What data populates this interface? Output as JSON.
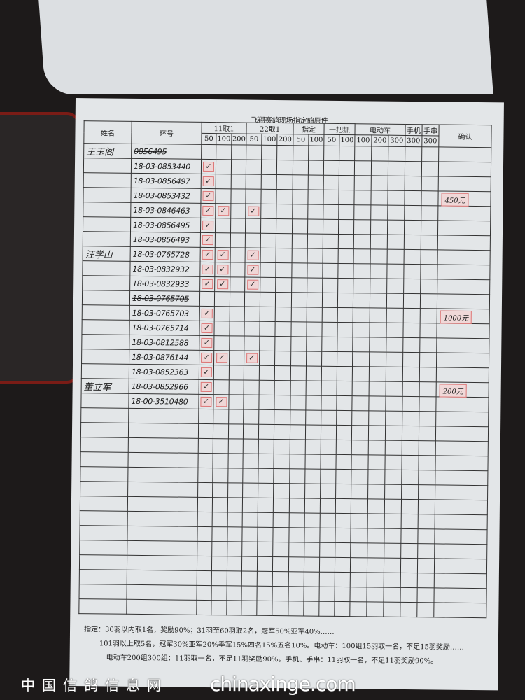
{
  "form": {
    "title": "飞翔赛鸽现场指定鸽原件",
    "headers": {
      "name": "姓名",
      "ring": "环号",
      "groups": [
        {
          "label": "11取1",
          "subs": [
            "50",
            "100",
            "200"
          ]
        },
        {
          "label": "22取1",
          "subs": [
            "50",
            "100",
            "200"
          ]
        },
        {
          "label": "指定",
          "subs": [
            "50",
            "100"
          ]
        },
        {
          "label": "一把抓",
          "subs": [
            "50",
            "100"
          ]
        },
        {
          "label": "电动车",
          "subs": [
            "100",
            "200",
            "300"
          ]
        },
        {
          "label": "手机",
          "subs": [
            "300"
          ]
        },
        {
          "label": "手串",
          "subs": [
            "300"
          ]
        }
      ],
      "confirm": "确认"
    },
    "rows": [
      {
        "name": "王玉阁",
        "ring": "0856495",
        "struck": true,
        "checks": []
      },
      {
        "name": "",
        "ring": "18-03-0853440",
        "checks": [
          0
        ]
      },
      {
        "name": "",
        "ring": "18-03-0856497",
        "checks": [
          0
        ]
      },
      {
        "name": "",
        "ring": "18-03-0853432",
        "checks": [
          0
        ],
        "confirm": "450元"
      },
      {
        "name": "",
        "ring": "18-03-0846463",
        "checks": [
          0,
          1,
          3
        ]
      },
      {
        "name": "",
        "ring": "18-03-0856495",
        "checks": [
          0
        ]
      },
      {
        "name": "",
        "ring": "18-03-0856493",
        "checks": [
          0
        ]
      },
      {
        "name": "汪学山",
        "ring": "18-03-0765728",
        "checks": [
          0,
          1,
          3
        ]
      },
      {
        "name": "",
        "ring": "18-03-0832932",
        "checks": [
          0,
          1,
          3
        ]
      },
      {
        "name": "",
        "ring": "18-03-0832933",
        "checks": [
          0,
          1,
          3
        ]
      },
      {
        "name": "",
        "ring": "18-03-0765705",
        "struck": true,
        "checks": []
      },
      {
        "name": "",
        "ring": "18-03-0765703",
        "checks": [
          0
        ],
        "confirm": "1000元"
      },
      {
        "name": "",
        "ring": "18-03-0765714",
        "checks": [
          0
        ]
      },
      {
        "name": "",
        "ring": "18-03-0812588",
        "checks": [
          0
        ]
      },
      {
        "name": "",
        "ring": "18-03-0876144",
        "checks": [
          0,
          1,
          3
        ]
      },
      {
        "name": "",
        "ring": "18-03-0852363",
        "checks": [
          0
        ]
      },
      {
        "name": "董立军",
        "ring": "18-03-0852966",
        "checks": [
          0
        ],
        "confirm": "200元"
      },
      {
        "name": "",
        "ring": "18-00-3510480",
        "checks": [
          0,
          1
        ]
      }
    ],
    "empty_rows": 14,
    "check_mark": "✓",
    "stamp_color": "#d77777"
  },
  "footer": {
    "line1": "指定：30羽以内取1名，奖励90%；31羽至60羽取2名，冠军50%亚军40%……",
    "line2": "101羽以上取5名，冠军30%亚军20%季军15%四名15%五名10%。电动车：100组15羽取一名，不足15羽奖励……",
    "line3": "电动车200组300组：11羽取一名，不足11羽奖励90%。手机、手串：11羽取一名，不足11羽奖励90%。"
  },
  "watermark": {
    "site": "chinaxinge.com",
    "name": "中国信鸽信息网"
  }
}
